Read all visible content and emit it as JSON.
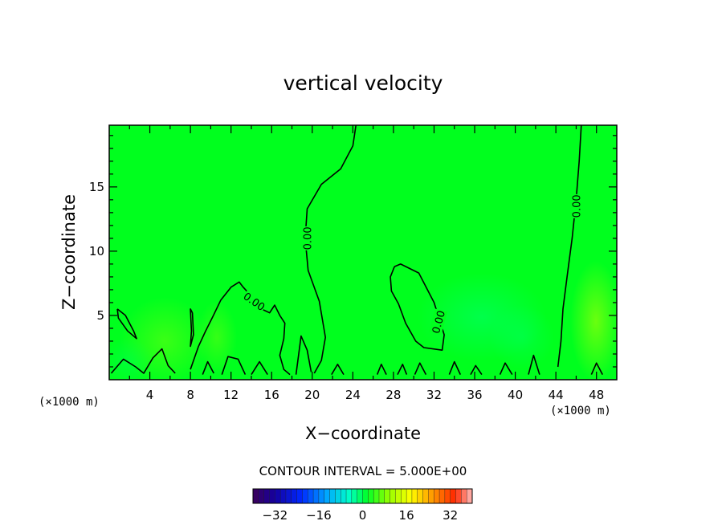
{
  "chart_data": {
    "type": "heatmap",
    "title": "vertical velocity",
    "xlabel": "X−coordinate",
    "ylabel": "Z−coordinate",
    "x_unit": "(×1000 m)",
    "y_unit": "(×1000 m)",
    "xlim": [
      0,
      50
    ],
    "ylim": [
      0,
      19.8
    ],
    "x_ticks": [
      4,
      8,
      12,
      16,
      20,
      24,
      28,
      32,
      36,
      40,
      44,
      48
    ],
    "y_ticks": [
      5,
      10,
      15
    ],
    "contour_interval_text": "CONTOUR INTERVAL = 5.000E+00",
    "contour_label": "0.00",
    "colorbar": {
      "min": -40,
      "max": 40,
      "ticks": [
        -32,
        -16,
        0,
        16,
        32
      ],
      "tick_labels": [
        "−32",
        "−16",
        "0",
        "16",
        "32"
      ]
    },
    "field_background_color": "#00ff1e",
    "zero_contours": [
      [
        [
          24.3,
          19.8
        ],
        [
          24.0,
          18.2
        ],
        [
          22.8,
          16.4
        ],
        [
          20.9,
          15.2
        ],
        [
          19.5,
          13.3
        ],
        [
          19.3,
          11.0
        ],
        [
          19.6,
          8.5
        ],
        [
          20.7,
          6.1
        ],
        [
          21.3,
          3.3
        ],
        [
          20.9,
          1.5
        ],
        [
          20.2,
          0.5
        ]
      ],
      [
        [
          46.5,
          19.8
        ],
        [
          46.3,
          17.0
        ],
        [
          46.0,
          14.0
        ],
        [
          45.6,
          11.0
        ],
        [
          45.1,
          8.0
        ],
        [
          44.7,
          5.5
        ],
        [
          44.5,
          3.0
        ],
        [
          44.2,
          1.0
        ]
      ],
      [
        [
          28.1,
          8.8
        ],
        [
          27.7,
          8.0
        ],
        [
          27.8,
          6.9
        ],
        [
          28.5,
          5.9
        ],
        [
          29.2,
          4.4
        ],
        [
          30.2,
          3.0
        ],
        [
          31.0,
          2.5
        ],
        [
          32.8,
          2.3
        ],
        [
          33.0,
          3.5
        ],
        [
          32.0,
          6.0
        ],
        [
          30.5,
          8.3
        ],
        [
          28.7,
          9.0
        ],
        [
          28.1,
          8.8
        ]
      ],
      [
        [
          0.8,
          5.5
        ],
        [
          1.6,
          5.0
        ],
        [
          2.4,
          3.8
        ],
        [
          2.7,
          3.2
        ],
        [
          1.8,
          3.8
        ],
        [
          0.9,
          4.8
        ],
        [
          0.8,
          5.5
        ]
      ],
      [
        [
          8.0,
          0.8
        ],
        [
          8.8,
          2.6
        ],
        [
          9.5,
          3.8
        ],
        [
          10.2,
          4.9
        ],
        [
          11.0,
          6.2
        ],
        [
          12.0,
          7.2
        ],
        [
          12.8,
          7.6
        ],
        [
          13.2,
          7.2
        ],
        [
          14.0,
          6.5
        ],
        [
          15.0,
          5.5
        ],
        [
          15.8,
          5.2
        ],
        [
          16.3,
          5.8
        ],
        [
          16.8,
          5.0
        ],
        [
          17.3,
          4.4
        ],
        [
          17.2,
          3.2
        ],
        [
          16.8,
          1.9
        ],
        [
          17.2,
          0.8
        ],
        [
          17.8,
          0.4
        ]
      ],
      [
        [
          8.2,
          5.2
        ],
        [
          8.3,
          3.5
        ],
        [
          8.0,
          2.6
        ],
        [
          8.1,
          3.8
        ],
        [
          8.0,
          5.5
        ],
        [
          8.2,
          5.2
        ]
      ],
      [
        [
          0.2,
          0.5
        ],
        [
          1.4,
          1.6
        ],
        [
          2.6,
          1.0
        ],
        [
          3.4,
          0.5
        ],
        [
          4.3,
          1.7
        ],
        [
          5.2,
          2.4
        ],
        [
          5.8,
          1.1
        ],
        [
          6.5,
          0.5
        ]
      ],
      [
        [
          9.2,
          0.4
        ],
        [
          9.7,
          1.4
        ],
        [
          10.3,
          0.5
        ]
      ],
      [
        [
          11.1,
          0.4
        ],
        [
          11.7,
          1.8
        ],
        [
          12.7,
          1.6
        ],
        [
          13.4,
          0.4
        ]
      ],
      [
        [
          14.0,
          0.4
        ],
        [
          14.8,
          1.4
        ],
        [
          15.6,
          0.4
        ]
      ],
      [
        [
          18.4,
          0.4
        ],
        [
          18.9,
          3.4
        ],
        [
          19.5,
          2.3
        ],
        [
          19.9,
          0.6
        ]
      ],
      [
        [
          21.9,
          0.4
        ],
        [
          22.5,
          1.2
        ],
        [
          23.1,
          0.4
        ]
      ],
      [
        [
          26.4,
          0.4
        ],
        [
          26.8,
          1.2
        ],
        [
          27.3,
          0.4
        ]
      ],
      [
        [
          28.4,
          0.4
        ],
        [
          28.9,
          1.2
        ],
        [
          29.3,
          0.4
        ]
      ],
      [
        [
          30.1,
          0.4
        ],
        [
          30.6,
          1.3
        ],
        [
          31.2,
          0.4
        ]
      ],
      [
        [
          33.5,
          0.4
        ],
        [
          34.0,
          1.4
        ],
        [
          34.6,
          0.4
        ]
      ],
      [
        [
          35.6,
          0.4
        ],
        [
          36.1,
          1.1
        ],
        [
          36.7,
          0.4
        ]
      ],
      [
        [
          38.5,
          0.4
        ],
        [
          39.0,
          1.3
        ],
        [
          39.7,
          0.4
        ]
      ],
      [
        [
          41.3,
          0.4
        ],
        [
          41.8,
          1.9
        ],
        [
          42.4,
          0.4
        ]
      ],
      [
        [
          47.5,
          0.4
        ],
        [
          48.0,
          1.3
        ],
        [
          48.6,
          0.4
        ]
      ]
    ],
    "contour_label_positions": [
      {
        "x": 19.5,
        "y": 11.0,
        "angle": 270
      },
      {
        "x": 46.0,
        "y": 13.5,
        "angle": 270
      },
      {
        "x": 32.4,
        "y": 4.5,
        "angle": 285
      },
      {
        "x": 14.3,
        "y": 6.1,
        "angle": 35
      }
    ]
  }
}
